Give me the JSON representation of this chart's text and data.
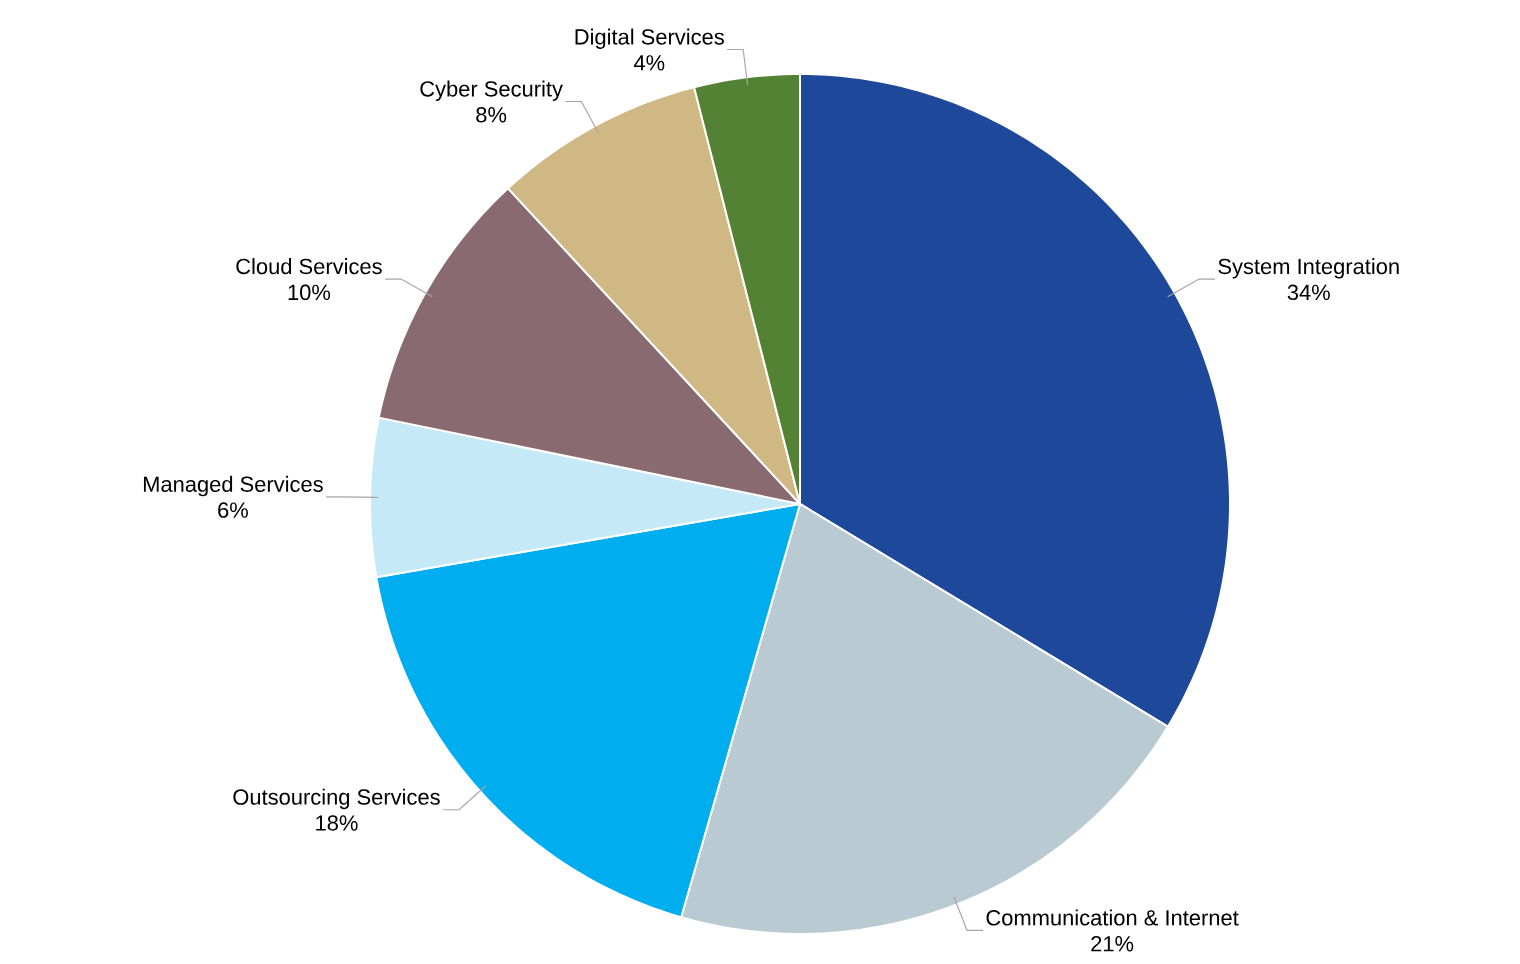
{
  "chart_data": {
    "type": "pie",
    "categories": [
      "System Integration",
      "Communication & Internet",
      "Outsourcing Services",
      "Managed Services",
      "Cloud Services",
      "Cyber Security",
      "Digital Services"
    ],
    "values": [
      34,
      21,
      18,
      6,
      10,
      8,
      4
    ],
    "value_labels": [
      "34%",
      "21%",
      "18%",
      "6%",
      "10%",
      "8%",
      "4%"
    ],
    "colors": [
      "#1e4899",
      "#b9cad3",
      "#00adee",
      "#c6e9f8",
      "#8a6a71",
      "#cfb884",
      "#548235"
    ]
  }
}
